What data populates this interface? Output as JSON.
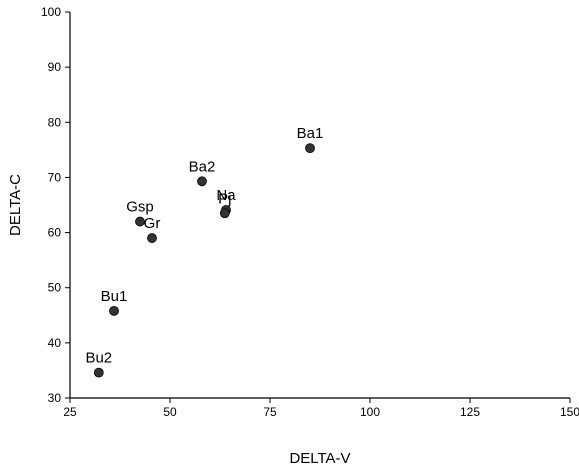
{
  "chart_data": {
    "type": "scatter",
    "title": "",
    "xlabel": "DELTA-V",
    "ylabel": "DELTA-C",
    "xlim": [
      25,
      150
    ],
    "ylim": [
      30,
      100
    ],
    "xticks": [
      25,
      50,
      75,
      100,
      125,
      150
    ],
    "yticks": [
      30,
      40,
      50,
      60,
      70,
      80,
      90,
      100
    ],
    "grid": false,
    "marker_color": "#333333",
    "points": [
      {
        "label": "Ba1",
        "x": 85,
        "y": 75.3
      },
      {
        "label": "Ba2",
        "x": 58,
        "y": 69.3
      },
      {
        "label": "Na",
        "x": 64,
        "y": 64.1
      },
      {
        "label": "Pj",
        "x": 63.7,
        "y": 63.5
      },
      {
        "label": "Gsp",
        "x": 42.5,
        "y": 62
      },
      {
        "label": "Gr",
        "x": 45.5,
        "y": 59
      },
      {
        "label": "Bu1",
        "x": 36,
        "y": 45.8
      },
      {
        "label": "Bu2",
        "x": 32.2,
        "y": 34.6
      }
    ]
  }
}
